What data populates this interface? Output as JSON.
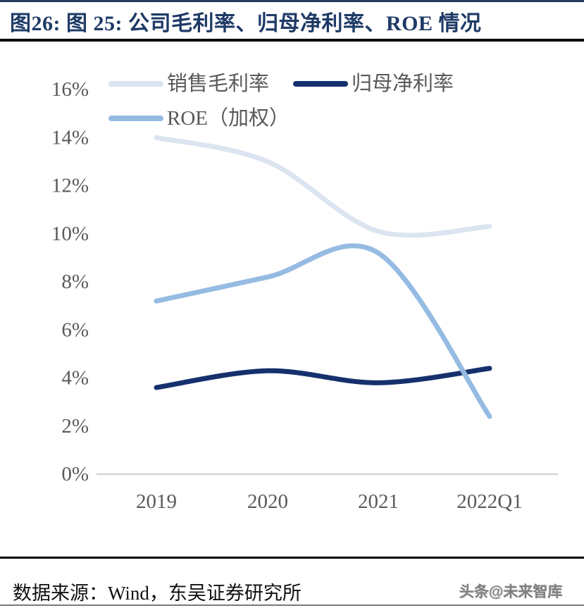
{
  "header": {
    "title": "图26:  图 25:  公司毛利率、归母净利率、ROE 情况"
  },
  "chart_data": {
    "type": "line",
    "title": "公司毛利率、归母净利率、ROE 情况",
    "categories": [
      "2019",
      "2020",
      "2021",
      "2022Q1"
    ],
    "series": [
      {
        "name": "销售毛利率",
        "color": "#dbe4f0",
        "values": [
          14.0,
          13.0,
          10.1,
          10.3
        ]
      },
      {
        "name": "归母净利率",
        "color": "#15306d",
        "values": [
          3.6,
          4.3,
          3.8,
          4.4
        ]
      },
      {
        "name": "ROE（加权）",
        "color": "#95bbe2",
        "values": [
          7.2,
          8.2,
          9.2,
          2.4
        ]
      }
    ],
    "xlabel": "",
    "ylabel": "",
    "ylim": [
      0,
      16
    ],
    "y_tick_step": 2,
    "y_tick_labels": [
      "0%",
      "2%",
      "4%",
      "6%",
      "8%",
      "10%",
      "12%",
      "14%",
      "16%"
    ],
    "grid": false,
    "legend_position": "top-left, two rows"
  },
  "footer": {
    "source": "数据来源：Wind，东吴证券研究所",
    "watermark": "头条@未来智库"
  },
  "colors": {
    "title_text": "#1e3a66",
    "axis_text": "#595959",
    "axis_line": "#d4d4d4",
    "rule_black": "#0a0a0a",
    "top_border": "#243a5f"
  }
}
